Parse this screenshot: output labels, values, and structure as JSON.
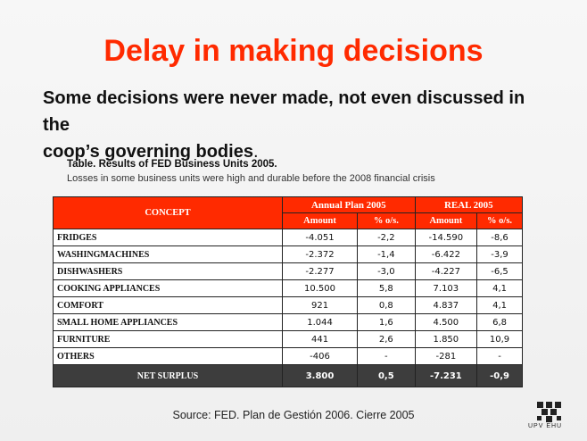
{
  "title": "Delay in making decisions",
  "subtitle_line1": "Some decisions were never made, not even discussed in the",
  "subtitle_line2": "coop’s governing bodies",
  "subtitle_end": ".",
  "table_caption": "Table. Results of FED Business Units 2005.",
  "table_note": "Losses in some business units were high and durable before the 2008 financial crisis",
  "table": {
    "concept_header": "CONCEPT",
    "group_plan": "Annual Plan 2005",
    "group_real": "REAL 2005",
    "col_amount": "Amount",
    "col_pct": "% o/s.",
    "rows": [
      {
        "concept": "FRIDGES",
        "plan_amount": "-4.051",
        "plan_pct": "-2,2",
        "real_amount": "-14.590",
        "real_pct": "-8,6"
      },
      {
        "concept": "WASHINGMACHINES",
        "plan_amount": "-2.372",
        "plan_pct": "-1,4",
        "real_amount": "-6.422",
        "real_pct": "-3,9"
      },
      {
        "concept": "DISHWASHERS",
        "plan_amount": "-2.277",
        "plan_pct": "-3,0",
        "real_amount": "-4.227",
        "real_pct": "-6,5"
      },
      {
        "concept": "COOKING APPLIANCES",
        "plan_amount": "10.500",
        "plan_pct": "5,8",
        "real_amount": "7.103",
        "real_pct": "4,1"
      },
      {
        "concept": "COMFORT",
        "plan_amount": "921",
        "plan_pct": "0,8",
        "real_amount": "4.837",
        "real_pct": "4,1"
      },
      {
        "concept": "SMALL HOME APPLIANCES",
        "plan_amount": "1.044",
        "plan_pct": "1,6",
        "real_amount": "4.500",
        "real_pct": "6,8"
      },
      {
        "concept": "FURNITURE",
        "plan_amount": "441",
        "plan_pct": "2,6",
        "real_amount": "1.850",
        "real_pct": "10,9"
      },
      {
        "concept": "OTHERS",
        "plan_amount": "-406",
        "plan_pct": "-",
        "real_amount": "-281",
        "real_pct": "-"
      }
    ],
    "total": {
      "concept": "NET SURPLUS",
      "plan_amount": "3.800",
      "plan_pct": "0,5",
      "real_amount": "-7.231",
      "real_pct": "-0,9"
    }
  },
  "source": "Source: FED. Plan de Gestión 2006. Cierre 2005",
  "logo_text": "UPV  EHU",
  "colors": {
    "accent": "#ff2a00",
    "total_bg": "#3d3d3d"
  }
}
